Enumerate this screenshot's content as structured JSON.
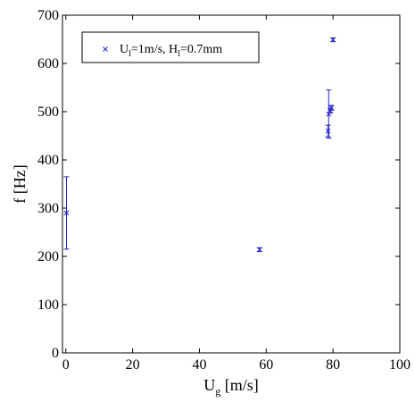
{
  "chart_data": {
    "type": "scatter",
    "title": "",
    "xlabel": {
      "main": "U",
      "sub": "g",
      "unit": " [m/s]"
    },
    "ylabel": "f [Hz]",
    "xlim": [
      -1,
      100
    ],
    "ylim": [
      0,
      700
    ],
    "xticks": [
      0,
      20,
      40,
      60,
      80,
      100
    ],
    "yticks": [
      0,
      100,
      200,
      300,
      400,
      500,
      600,
      700
    ],
    "grid": false,
    "legend_position": "top-left",
    "colors": {
      "series": "#2323c8",
      "axes": "#000000"
    },
    "series": [
      {
        "name": "U_l=1m/s, H_l=0.7mm",
        "name_parts": {
          "u": "U",
          "u_sub": "l",
          "u_val": "=1m/s, ",
          "h": "H",
          "h_sub": "l",
          "h_val": "=0.7mm"
        },
        "marker": "x",
        "points": [
          {
            "x": 0.2,
            "y": 290,
            "err": 75
          },
          {
            "x": 58.0,
            "y": 214,
            "err": 4
          },
          {
            "x": 78.5,
            "y": 460,
            "err": 12
          },
          {
            "x": 78.7,
            "y": 495,
            "err": 50
          },
          {
            "x": 79.2,
            "y": 502,
            "err": 5
          },
          {
            "x": 79.5,
            "y": 508,
            "err": 5
          },
          {
            "x": 80.0,
            "y": 649,
            "err": 4
          }
        ]
      }
    ]
  }
}
